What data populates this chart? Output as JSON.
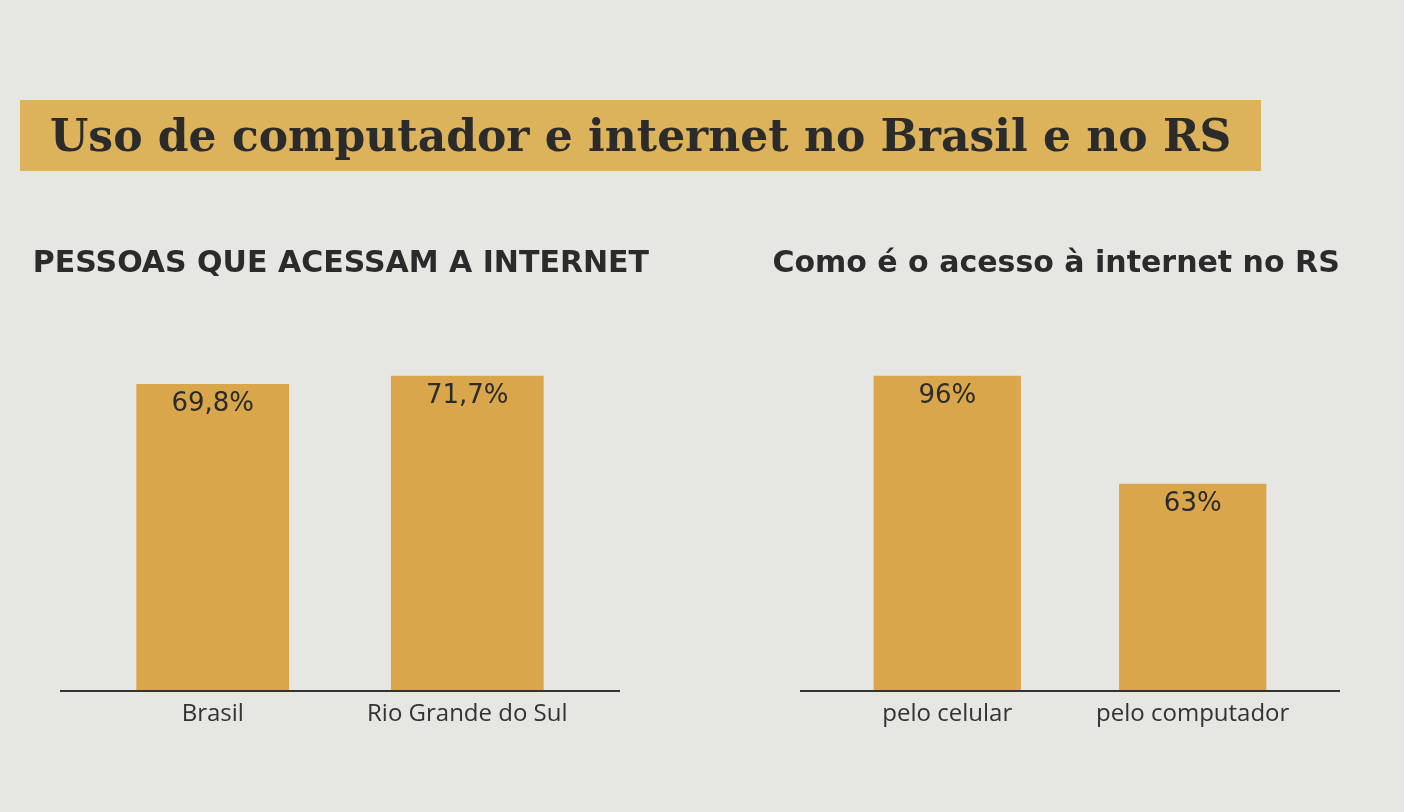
{
  "chart_data": [
    {
      "type": "bar",
      "title": "Uso de computador e internet no Brasil e no RS",
      "subtitle": "PESSOAS QUE ACESSAM A INTERNET",
      "categories": [
        "Brasil",
        "Rio Grande do Sul"
      ],
      "values": [
        69.8,
        71.7
      ],
      "value_labels": [
        "69,8%",
        "71,7%"
      ],
      "color": "#d9a64c",
      "tick_labels": "x"
    },
    {
      "type": "bar",
      "title": "Como é o acesso à internet no RS",
      "categories": [
        "pelo celular",
        "pelo computador"
      ],
      "values": [
        96,
        63
      ],
      "value_labels": [
        "96%",
        "63%"
      ],
      "color": "#d9a64c",
      "tick_labels": "x"
    }
  ]
}
